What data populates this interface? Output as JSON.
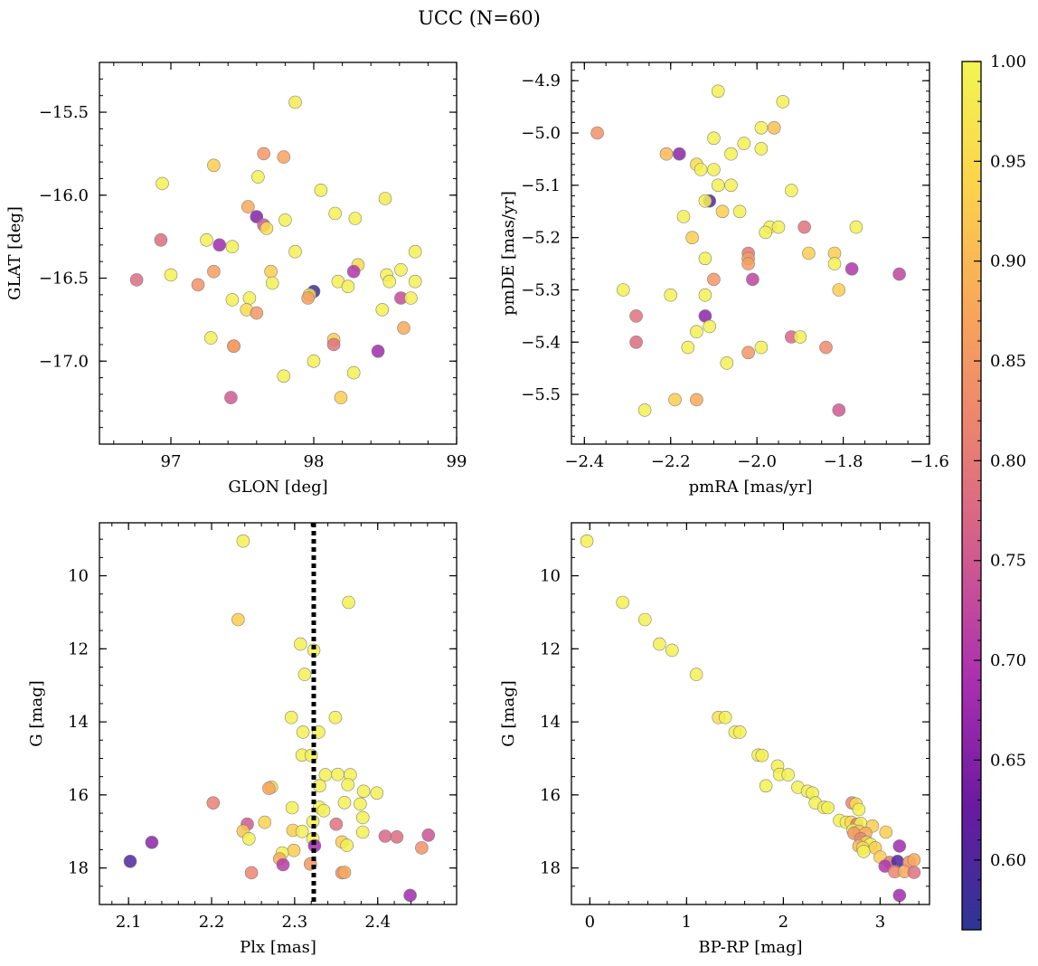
{
  "title": "UCC (N=60)",
  "colorbar": {
    "min": 0.565,
    "max": 1.0,
    "ticks": [
      "0.60",
      "0.65",
      "0.70",
      "0.75",
      "0.80",
      "0.85",
      "0.90",
      "0.95",
      "1.00"
    ],
    "tick_values": [
      0.6,
      0.65,
      0.7,
      0.75,
      0.8,
      0.85,
      0.9,
      0.95,
      1.0
    ],
    "colormap": [
      "#2c3695",
      "#6a1aa0",
      "#a92fb0",
      "#d05a8f",
      "#eb8170",
      "#f8a65a",
      "#fcd34b",
      "#f1f553"
    ]
  },
  "marker": {
    "edge_color": "#808080",
    "alpha": 0.85
  },
  "chart_data": [
    {
      "type": "scatter",
      "xlabel": "GLON [deg]",
      "ylabel": "GLAT [deg]",
      "xlim": [
        96.5,
        99.0
      ],
      "ylim": [
        -17.5,
        -15.2
      ],
      "x_ticks": [
        97,
        98,
        99
      ],
      "y_ticks": [
        -17.0,
        -16.5,
        -16.0,
        -15.5
      ],
      "y_tick_labels": [
        "−17.0",
        "−16.5",
        "−16.0",
        "−15.5"
      ],
      "points": [
        [
          97.87,
          -15.44,
          0.98
        ],
        [
          97.65,
          -15.75,
          0.85
        ],
        [
          97.79,
          -15.77,
          0.87
        ],
        [
          97.3,
          -15.82,
          0.93
        ],
        [
          97.61,
          -15.89,
          0.99
        ],
        [
          96.94,
          -15.93,
          0.99
        ],
        [
          98.05,
          -15.97,
          0.99
        ],
        [
          98.5,
          -16.02,
          0.98
        ],
        [
          97.54,
          -16.07,
          0.88
        ],
        [
          98.15,
          -16.11,
          0.99
        ],
        [
          97.6,
          -16.13,
          0.65
        ],
        [
          97.8,
          -16.15,
          0.99
        ],
        [
          98.29,
          -16.14,
          0.99
        ],
        [
          97.65,
          -16.18,
          0.75
        ],
        [
          97.67,
          -16.2,
          0.96
        ],
        [
          96.93,
          -16.27,
          0.78
        ],
        [
          97.25,
          -16.27,
          0.99
        ],
        [
          97.34,
          -16.3,
          0.68
        ],
        [
          97.43,
          -16.31,
          0.99
        ],
        [
          97.87,
          -16.34,
          0.99
        ],
        [
          98.71,
          -16.34,
          0.99
        ],
        [
          98.31,
          -16.42,
          0.95
        ],
        [
          97.7,
          -16.46,
          0.93
        ],
        [
          97.3,
          -16.46,
          0.86
        ],
        [
          98.28,
          -16.46,
          0.7
        ],
        [
          98.61,
          -16.45,
          0.99
        ],
        [
          97.0,
          -16.48,
          0.99
        ],
        [
          98.51,
          -16.48,
          0.99
        ],
        [
          96.76,
          -16.51,
          0.78
        ],
        [
          98.17,
          -16.52,
          0.99
        ],
        [
          98.53,
          -16.52,
          0.99
        ],
        [
          98.71,
          -16.52,
          0.99
        ],
        [
          97.71,
          -16.53,
          0.99
        ],
        [
          97.19,
          -16.54,
          0.84
        ],
        [
          98.24,
          -16.55,
          0.99
        ],
        [
          98.0,
          -16.58,
          0.58
        ],
        [
          97.97,
          -16.6,
          0.96
        ],
        [
          97.96,
          -16.62,
          0.86
        ],
        [
          98.61,
          -16.62,
          0.73
        ],
        [
          98.68,
          -16.62,
          0.99
        ],
        [
          97.55,
          -16.62,
          0.99
        ],
        [
          97.43,
          -16.63,
          0.99
        ],
        [
          97.53,
          -16.69,
          0.95
        ],
        [
          98.48,
          -16.69,
          0.99
        ],
        [
          97.6,
          -16.71,
          0.85
        ],
        [
          98.63,
          -16.8,
          0.88
        ],
        [
          97.28,
          -16.86,
          0.99
        ],
        [
          98.14,
          -16.87,
          0.93
        ],
        [
          98.14,
          -16.9,
          0.79
        ],
        [
          97.44,
          -16.91,
          0.84
        ],
        [
          97.44,
          -16.91,
          0.86
        ],
        [
          98.45,
          -16.94,
          0.68
        ],
        [
          98.0,
          -17.0,
          0.99
        ],
        [
          97.79,
          -17.09,
          0.99
        ],
        [
          98.28,
          -17.07,
          0.99
        ],
        [
          97.42,
          -17.22,
          0.75
        ],
        [
          98.19,
          -17.22,
          0.93
        ]
      ]
    },
    {
      "type": "scatter",
      "xlabel": "pmRA [mas/yr]",
      "ylabel": "pmDE [mas/yr]",
      "xlim": [
        -2.43,
        -1.6
      ],
      "ylim": [
        -5.595,
        -4.865
      ],
      "x_ticks": [
        -2.4,
        -2.2,
        -2.0,
        -1.8,
        -1.6
      ],
      "x_tick_labels": [
        "−2.4",
        "−2.2",
        "−2.0",
        "−1.8",
        "−1.6"
      ],
      "y_ticks": [
        -5.5,
        -5.4,
        -5.3,
        -5.2,
        -5.1,
        -5.0,
        -4.9
      ],
      "y_tick_labels": [
        "−5.5",
        "−5.4",
        "−5.3",
        "−5.2",
        "−5.1",
        "−5.0",
        "−4.9"
      ],
      "points": [
        [
          -2.37,
          -5.0,
          0.84
        ],
        [
          -2.21,
          -5.04,
          0.9
        ],
        [
          -2.18,
          -5.04,
          0.66
        ],
        [
          -2.09,
          -4.92,
          0.99
        ],
        [
          -1.94,
          -4.94,
          0.99
        ],
        [
          -1.96,
          -4.99,
          0.91
        ],
        [
          -1.99,
          -4.99,
          0.99
        ],
        [
          -2.1,
          -5.01,
          0.99
        ],
        [
          -2.03,
          -5.02,
          0.99
        ],
        [
          -2.06,
          -5.04,
          0.99
        ],
        [
          -1.99,
          -5.03,
          0.99
        ],
        [
          -2.14,
          -5.06,
          0.95
        ],
        [
          -2.13,
          -5.07,
          0.99
        ],
        [
          -2.1,
          -5.07,
          0.99
        ],
        [
          -2.09,
          -5.1,
          0.99
        ],
        [
          -2.06,
          -5.1,
          0.99
        ],
        [
          -1.92,
          -5.11,
          0.99
        ],
        [
          -2.11,
          -5.13,
          0.6
        ],
        [
          -2.12,
          -5.13,
          0.99
        ],
        [
          -2.08,
          -5.15,
          0.93
        ],
        [
          -2.04,
          -5.15,
          0.99
        ],
        [
          -2.17,
          -5.16,
          0.99
        ],
        [
          -1.97,
          -5.18,
          0.99
        ],
        [
          -1.98,
          -5.19,
          0.99
        ],
        [
          -1.95,
          -5.18,
          0.99
        ],
        [
          -1.89,
          -5.18,
          0.79
        ],
        [
          -1.77,
          -5.18,
          0.99
        ],
        [
          -2.15,
          -5.2,
          0.93
        ],
        [
          -2.12,
          -5.24,
          0.99
        ],
        [
          -1.88,
          -5.23,
          0.93
        ],
        [
          -2.02,
          -5.23,
          0.8
        ],
        [
          -1.82,
          -5.23,
          0.93
        ],
        [
          -2.02,
          -5.24,
          0.86
        ],
        [
          -1.82,
          -5.25,
          0.99
        ],
        [
          -2.02,
          -5.25,
          0.86
        ],
        [
          -1.78,
          -5.26,
          0.7
        ],
        [
          -1.67,
          -5.27,
          0.72
        ],
        [
          -2.1,
          -5.28,
          0.85
        ],
        [
          -2.01,
          -5.28,
          0.72
        ],
        [
          -1.81,
          -5.3,
          0.93
        ],
        [
          -2.31,
          -5.3,
          0.99
        ],
        [
          -2.2,
          -5.31,
          0.99
        ],
        [
          -2.12,
          -5.31,
          0.99
        ],
        [
          -2.28,
          -5.35,
          0.79
        ],
        [
          -2.12,
          -5.35,
          0.66
        ],
        [
          -2.11,
          -5.37,
          0.99
        ],
        [
          -2.14,
          -5.38,
          0.99
        ],
        [
          -2.28,
          -5.4,
          0.78
        ],
        [
          -1.92,
          -5.39,
          0.77
        ],
        [
          -1.9,
          -5.39,
          0.99
        ],
        [
          -2.16,
          -5.41,
          0.99
        ],
        [
          -1.99,
          -5.41,
          0.99
        ],
        [
          -1.84,
          -5.41,
          0.83
        ],
        [
          -2.02,
          -5.42,
          0.85
        ],
        [
          -2.07,
          -5.44,
          0.99
        ],
        [
          -2.19,
          -5.51,
          0.93
        ],
        [
          -2.14,
          -5.51,
          0.88
        ],
        [
          -1.81,
          -5.53,
          0.75
        ],
        [
          -2.26,
          -5.53,
          0.99
        ]
      ]
    },
    {
      "type": "scatter",
      "xlabel": "Plx [mas]",
      "ylabel": "G [mag]",
      "xlim": [
        2.065,
        2.495
      ],
      "ylim": [
        19.0,
        8.55
      ],
      "x_ticks": [
        2.1,
        2.2,
        2.3,
        2.4
      ],
      "y_ticks": [
        10,
        12,
        14,
        16,
        18
      ],
      "vline": 2.323,
      "points": [
        [
          2.238,
          9.05,
          0.99
        ],
        [
          2.365,
          10.73,
          0.99
        ],
        [
          2.232,
          11.2,
          0.93
        ],
        [
          2.307,
          11.87,
          0.99
        ],
        [
          2.323,
          12.04,
          0.99
        ],
        [
          2.312,
          12.7,
          0.99
        ],
        [
          2.296,
          13.88,
          0.99
        ],
        [
          2.349,
          13.88,
          0.99
        ],
        [
          2.31,
          14.28,
          0.99
        ],
        [
          2.329,
          14.28,
          0.99
        ],
        [
          2.309,
          14.91,
          0.99
        ],
        [
          2.32,
          14.92,
          0.99
        ],
        [
          2.337,
          15.45,
          0.99
        ],
        [
          2.352,
          15.44,
          0.99
        ],
        [
          2.367,
          15.45,
          0.99
        ],
        [
          2.33,
          15.75,
          0.99
        ],
        [
          2.364,
          15.72,
          0.99
        ],
        [
          2.272,
          15.79,
          0.96
        ],
        [
          2.269,
          15.82,
          0.87
        ],
        [
          2.383,
          15.9,
          0.99
        ],
        [
          2.399,
          15.95,
          0.99
        ],
        [
          2.202,
          16.22,
          0.81
        ],
        [
          2.36,
          16.21,
          0.99
        ],
        [
          2.379,
          16.25,
          0.99
        ],
        [
          2.297,
          16.35,
          0.99
        ],
        [
          2.33,
          16.34,
          0.99
        ],
        [
          2.335,
          16.43,
          0.99
        ],
        [
          2.382,
          16.62,
          0.99
        ],
        [
          2.322,
          16.73,
          0.99
        ],
        [
          2.264,
          16.75,
          0.94
        ],
        [
          2.243,
          16.8,
          0.75
        ],
        [
          2.35,
          16.8,
          0.79
        ],
        [
          2.298,
          16.97,
          0.93
        ],
        [
          2.238,
          16.99,
          0.92
        ],
        [
          2.309,
          17.0,
          0.99
        ],
        [
          2.382,
          17.02,
          0.99
        ],
        [
          2.409,
          17.13,
          0.77
        ],
        [
          2.423,
          17.15,
          0.78
        ],
        [
          2.461,
          17.1,
          0.74
        ],
        [
          2.245,
          17.2,
          0.99
        ],
        [
          2.322,
          17.2,
          0.99
        ],
        [
          2.357,
          17.29,
          0.93
        ],
        [
          2.363,
          17.38,
          0.99
        ],
        [
          2.128,
          17.3,
          0.66
        ],
        [
          2.324,
          17.39,
          0.68
        ],
        [
          2.453,
          17.45,
          0.84
        ],
        [
          2.299,
          17.52,
          0.93
        ],
        [
          2.285,
          17.59,
          0.99
        ],
        [
          2.282,
          17.75,
          0.88
        ],
        [
          2.102,
          17.82,
          0.6
        ],
        [
          2.286,
          17.91,
          0.71
        ],
        [
          2.319,
          17.89,
          0.85
        ],
        [
          2.248,
          18.13,
          0.82
        ],
        [
          2.357,
          18.13,
          0.84
        ],
        [
          2.36,
          18.12,
          0.88
        ],
        [
          2.439,
          18.75,
          0.68
        ]
      ]
    },
    {
      "type": "scatter",
      "xlabel": "BP-RP [mag]",
      "ylabel": "G [mag]",
      "xlim": [
        -0.19,
        3.51
      ],
      "ylim": [
        19.0,
        8.55
      ],
      "x_ticks": [
        0,
        1,
        2,
        3
      ],
      "y_ticks": [
        10,
        12,
        14,
        16,
        18
      ],
      "points": [
        [
          -0.03,
          9.05,
          0.99
        ],
        [
          0.34,
          10.73,
          0.99
        ],
        [
          0.57,
          11.2,
          0.99
        ],
        [
          0.72,
          11.87,
          0.99
        ],
        [
          0.85,
          12.04,
          0.99
        ],
        [
          1.1,
          12.7,
          0.99
        ],
        [
          1.33,
          13.88,
          0.96
        ],
        [
          1.4,
          13.88,
          0.99
        ],
        [
          1.5,
          14.28,
          0.99
        ],
        [
          1.55,
          14.28,
          0.99
        ],
        [
          1.74,
          14.91,
          0.99
        ],
        [
          1.78,
          14.92,
          0.99
        ],
        [
          1.94,
          15.21,
          0.99
        ],
        [
          1.96,
          15.44,
          0.99
        ],
        [
          2.05,
          15.45,
          0.99
        ],
        [
          1.82,
          15.75,
          0.99
        ],
        [
          2.15,
          15.79,
          0.99
        ],
        [
          2.25,
          15.9,
          0.99
        ],
        [
          2.3,
          15.95,
          0.99
        ],
        [
          2.33,
          16.22,
          0.99
        ],
        [
          2.42,
          16.34,
          0.99
        ],
        [
          2.46,
          16.35,
          0.99
        ],
        [
          2.58,
          16.7,
          0.99
        ],
        [
          2.65,
          16.75,
          0.99
        ],
        [
          2.71,
          16.22,
          0.82
        ],
        [
          2.75,
          16.25,
          0.95
        ],
        [
          2.78,
          16.4,
          0.99
        ],
        [
          2.7,
          16.75,
          0.95
        ],
        [
          2.76,
          16.8,
          0.8
        ],
        [
          2.8,
          16.78,
          0.99
        ],
        [
          2.92,
          16.85,
          0.93
        ],
        [
          2.72,
          16.97,
          0.99
        ],
        [
          2.78,
          17.0,
          0.93
        ],
        [
          2.73,
          17.05,
          0.85
        ],
        [
          2.85,
          17.05,
          0.88
        ],
        [
          3.06,
          17.02,
          0.93
        ],
        [
          2.8,
          17.2,
          0.82
        ],
        [
          2.86,
          17.3,
          0.94
        ],
        [
          2.9,
          17.35,
          0.99
        ],
        [
          2.78,
          17.4,
          0.9
        ],
        [
          2.82,
          17.45,
          0.95
        ],
        [
          2.95,
          17.45,
          0.93
        ],
        [
          2.83,
          17.55,
          0.99
        ],
        [
          3.0,
          17.7,
          0.93
        ],
        [
          3.2,
          17.4,
          0.68
        ],
        [
          3.1,
          17.85,
          0.8
        ],
        [
          3.18,
          17.82,
          0.6
        ],
        [
          3.3,
          17.84,
          0.84
        ],
        [
          3.35,
          17.78,
          0.88
        ],
        [
          3.05,
          17.95,
          0.7
        ],
        [
          3.15,
          18.1,
          0.82
        ],
        [
          3.25,
          18.1,
          0.88
        ],
        [
          3.35,
          18.12,
          0.79
        ],
        [
          3.2,
          18.75,
          0.68
        ]
      ]
    }
  ]
}
